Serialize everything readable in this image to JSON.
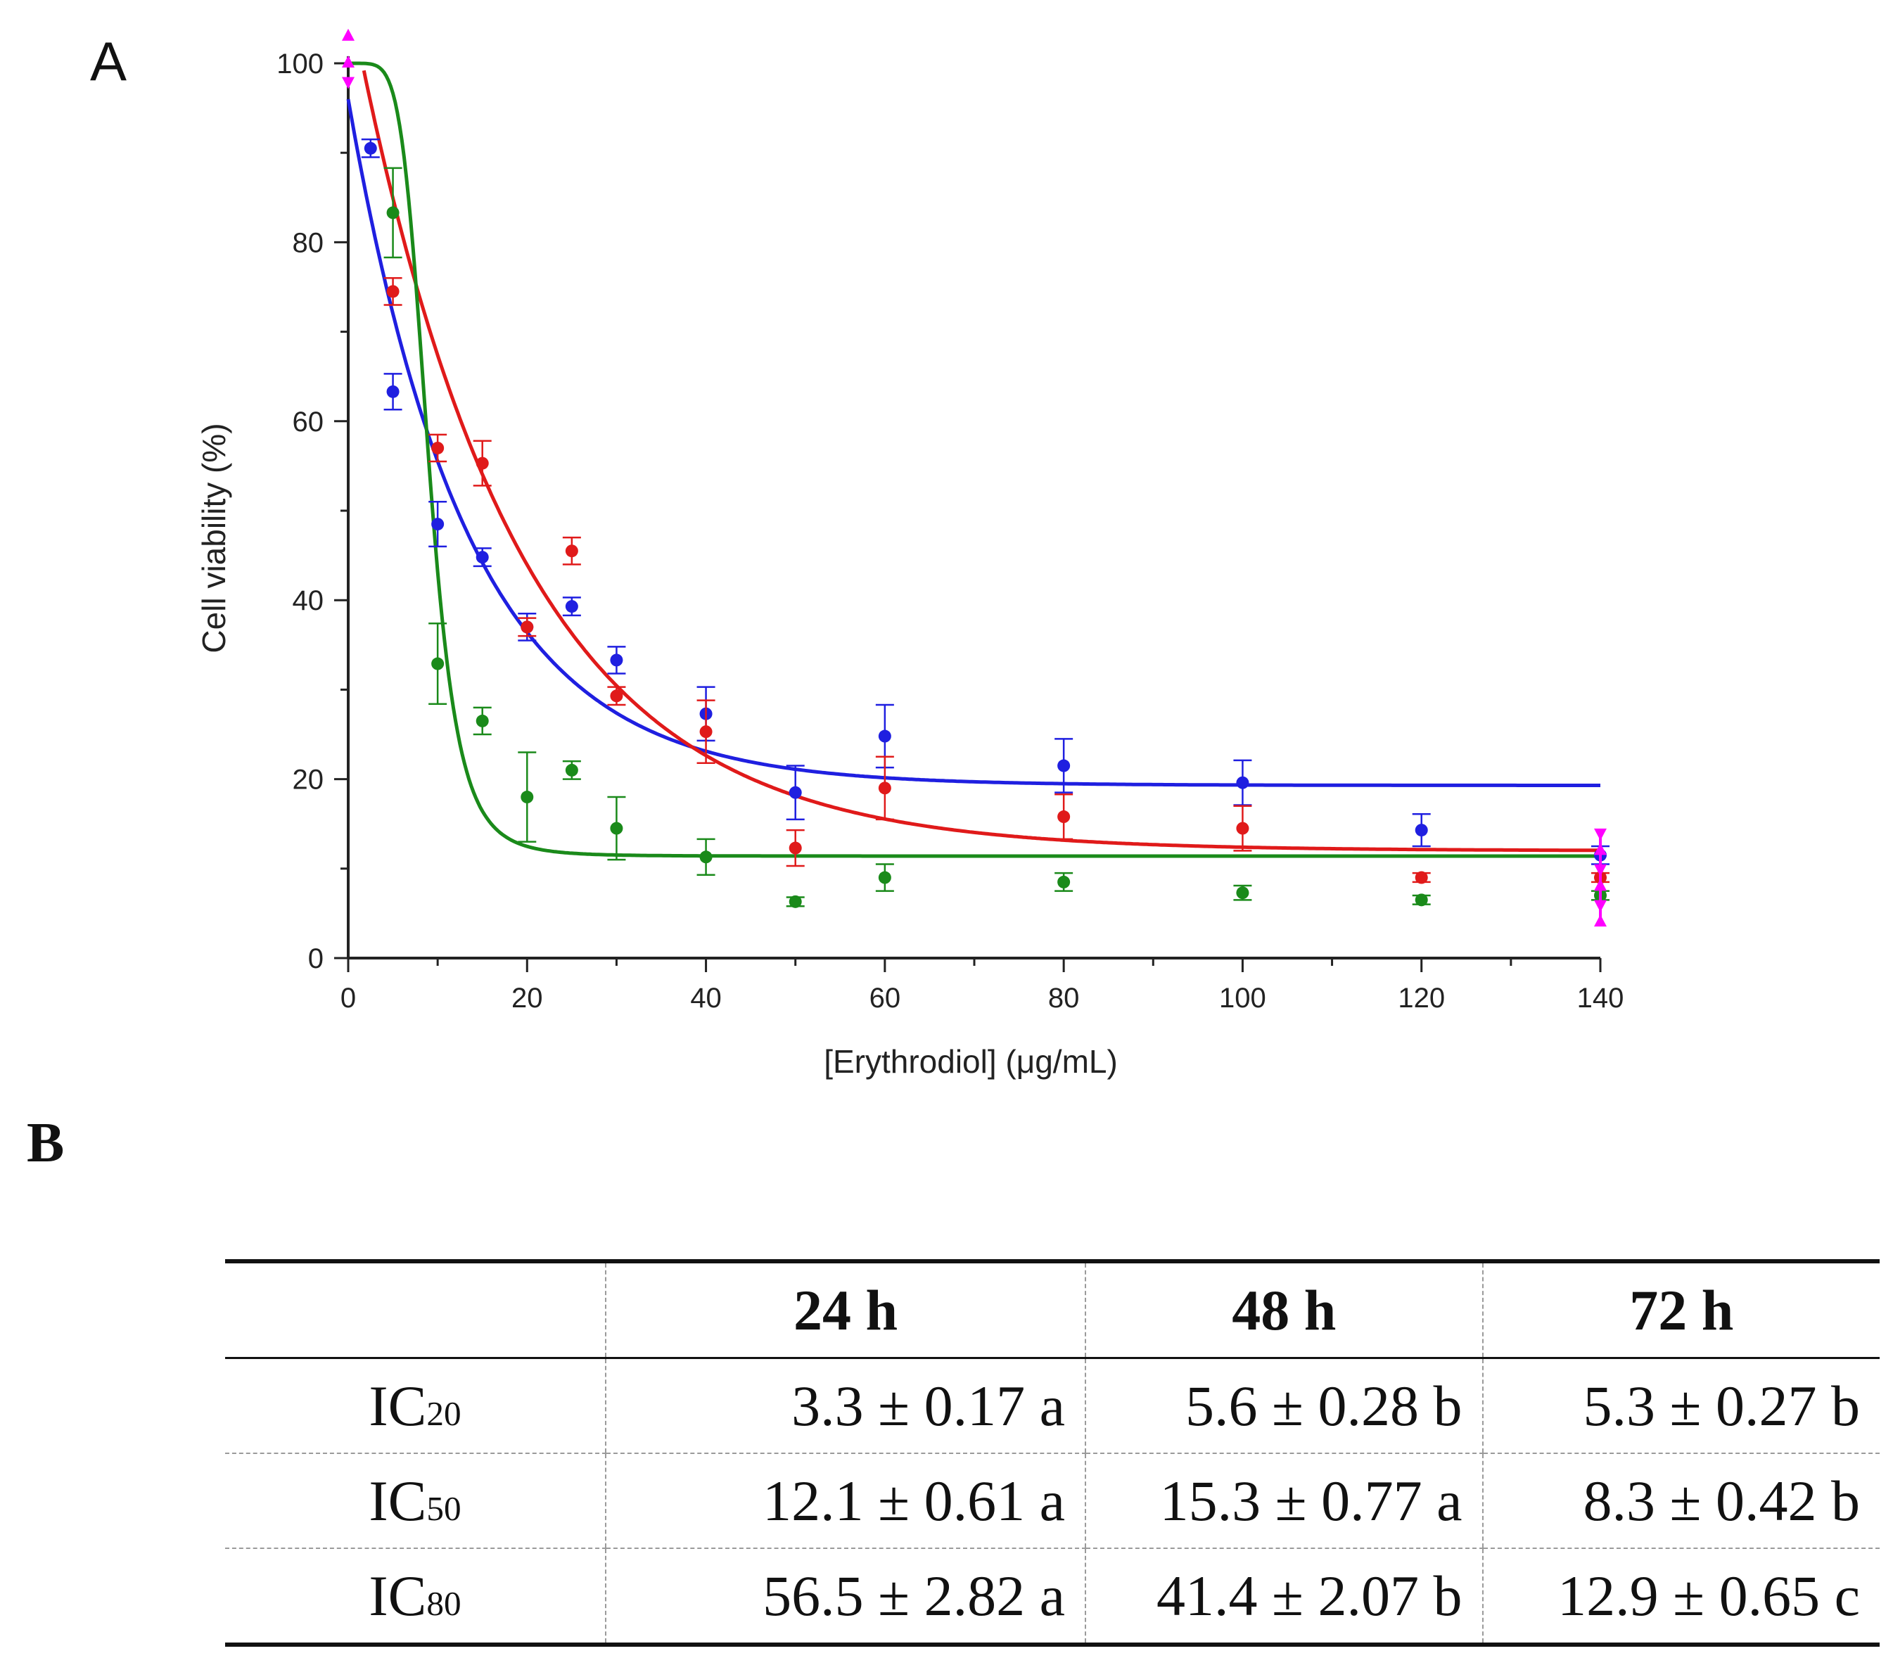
{
  "panels": {
    "a": "A",
    "b": "B"
  },
  "chart_data": {
    "type": "scatter",
    "title": "",
    "xlabel": "[Erythrodiol] (μg/mL)",
    "ylabel": "Cell viability (%)",
    "xlim": [
      0,
      140
    ],
    "ylim": [
      0,
      100
    ],
    "xticks": [
      0,
      20,
      40,
      60,
      80,
      100,
      120,
      140
    ],
    "yticks": [
      0,
      20,
      40,
      60,
      80,
      100
    ],
    "grid": false,
    "legend": "none",
    "series": [
      {
        "color": "#1f1fe0",
        "points": [
          {
            "x": 2.5,
            "y": 90.5,
            "err": 1.0
          },
          {
            "x": 5,
            "y": 63.3,
            "err": 2.0
          },
          {
            "x": 10,
            "y": 48.5,
            "err": 2.5
          },
          {
            "x": 15,
            "y": 44.8,
            "err": 1.0
          },
          {
            "x": 20,
            "y": 37.0,
            "err": 1.5
          },
          {
            "x": 25,
            "y": 39.3,
            "err": 1.0
          },
          {
            "x": 30,
            "y": 33.3,
            "err": 1.5
          },
          {
            "x": 40,
            "y": 27.3,
            "err": 3.0
          },
          {
            "x": 50,
            "y": 18.5,
            "err": 3.0
          },
          {
            "x": 60,
            "y": 24.8,
            "err": 3.5
          },
          {
            "x": 80,
            "y": 21.5,
            "err": 3.0
          },
          {
            "x": 100,
            "y": 19.6,
            "err": 2.5
          },
          {
            "x": 120,
            "y": 14.3,
            "err": 1.8
          },
          {
            "x": 140,
            "y": 11.5,
            "err": 1.0
          }
        ],
        "fit": {
          "top": 96,
          "bottom": 19.3,
          "k": 0.075
        }
      },
      {
        "color": "#e01a1a",
        "points": [
          {
            "x": 5,
            "y": 74.5,
            "err": 1.5
          },
          {
            "x": 10,
            "y": 57.0,
            "err": 1.5
          },
          {
            "x": 15,
            "y": 55.3,
            "err": 2.5
          },
          {
            "x": 20,
            "y": 37.0,
            "err": 1.0
          },
          {
            "x": 25,
            "y": 45.5,
            "err": 1.5
          },
          {
            "x": 30,
            "y": 29.3,
            "err": 1.0
          },
          {
            "x": 40,
            "y": 25.3,
            "err": 3.5
          },
          {
            "x": 50,
            "y": 12.3,
            "err": 2.0
          },
          {
            "x": 60,
            "y": 19.0,
            "err": 3.5
          },
          {
            "x": 80,
            "y": 15.8,
            "err": 2.5
          },
          {
            "x": 100,
            "y": 14.5,
            "err": 2.5
          },
          {
            "x": 120,
            "y": 9.0,
            "err": 0.5
          },
          {
            "x": 140,
            "y": 9.0,
            "err": 0.5
          }
        ],
        "fit": {
          "top": 108,
          "bottom": 12.0,
          "k": 0.055
        }
      },
      {
        "color": "#1a8a1a",
        "points": [
          {
            "x": 5,
            "y": 83.3,
            "err": 5.0
          },
          {
            "x": 10,
            "y": 32.9,
            "err": 4.5
          },
          {
            "x": 15,
            "y": 26.5,
            "err": 1.5
          },
          {
            "x": 20,
            "y": 18.0,
            "err": 5.0
          },
          {
            "x": 25,
            "y": 21.0,
            "err": 1.0
          },
          {
            "x": 30,
            "y": 14.5,
            "err": 3.5
          },
          {
            "x": 40,
            "y": 11.3,
            "err": 2.0
          },
          {
            "x": 50,
            "y": 6.3,
            "err": 0.5
          },
          {
            "x": 60,
            "y": 9.0,
            "err": 1.5
          },
          {
            "x": 80,
            "y": 8.5,
            "err": 1.0
          },
          {
            "x": 100,
            "y": 7.3,
            "err": 0.8
          },
          {
            "x": 120,
            "y": 6.5,
            "err": 0.5
          },
          {
            "x": 140,
            "y": 7.0,
            "err": 0.5
          }
        ],
        "fit": {
          "ec50": 9.0,
          "hill": 5.5,
          "top": 100,
          "bottom": 11.4
        }
      }
    ],
    "markers": {
      "color": "#ff00ff",
      "points": [
        {
          "x": 0,
          "y": 100
        },
        {
          "x": 0,
          "y": 98
        },
        {
          "x": 0,
          "y": 103
        },
        {
          "x": 140,
          "y": 14
        },
        {
          "x": 140,
          "y": 12
        },
        {
          "x": 140,
          "y": 10
        },
        {
          "x": 140,
          "y": 8
        },
        {
          "x": 140,
          "y": 6
        },
        {
          "x": 140,
          "y": 4
        }
      ]
    }
  },
  "table": {
    "headers": [
      "",
      "24 h",
      "48 h",
      "72 h"
    ],
    "rows": [
      {
        "label_main": "IC",
        "label_sub": "20",
        "values": [
          "3.3 ± 0.17 a",
          "5.6 ± 0.28 b",
          "5.3 ± 0.27 b"
        ]
      },
      {
        "label_main": "IC",
        "label_sub": "50",
        "values": [
          "12.1 ± 0.61 a",
          "15.3 ± 0.77 a",
          "8.3 ± 0.42 b"
        ]
      },
      {
        "label_main": "IC",
        "label_sub": "80",
        "values": [
          "56.5 ± 2.82 a",
          "41.4 ± 2.07 b",
          "12.9 ± 0.65 c"
        ]
      }
    ]
  }
}
